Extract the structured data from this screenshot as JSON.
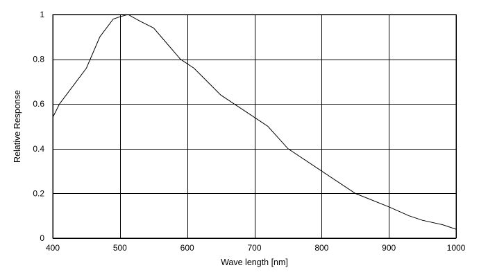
{
  "chart_data": {
    "type": "line",
    "xlabel": "Wave length [nm]",
    "ylabel": "Relative Response",
    "xlim": [
      400,
      1000
    ],
    "ylim": [
      0,
      1
    ],
    "xticks": [
      400,
      500,
      600,
      700,
      800,
      900,
      1000
    ],
    "yticks": [
      0,
      0.2,
      0.4,
      0.6,
      0.8,
      1
    ],
    "xtick_labels": [
      "400",
      "500",
      "600",
      "700",
      "800",
      "900",
      "1000"
    ],
    "ytick_labels": [
      "0",
      "0.2",
      "0.4",
      "0.6",
      "0.8",
      "1"
    ],
    "grid": true,
    "series": [
      {
        "color": "#000000",
        "x": [
          400,
          410,
          430,
          450,
          470,
          490,
          500,
          512,
          530,
          550,
          570,
          590,
          610,
          630,
          650,
          670,
          690,
          720,
          750,
          800,
          850,
          900,
          930,
          950,
          980,
          1000
        ],
        "y": [
          0.54,
          0.6,
          0.68,
          0.76,
          0.9,
          0.98,
          0.99,
          1.0,
          0.97,
          0.94,
          0.87,
          0.8,
          0.76,
          0.7,
          0.64,
          0.6,
          0.56,
          0.5,
          0.4,
          0.3,
          0.2,
          0.14,
          0.1,
          0.08,
          0.06,
          0.04
        ]
      }
    ]
  }
}
